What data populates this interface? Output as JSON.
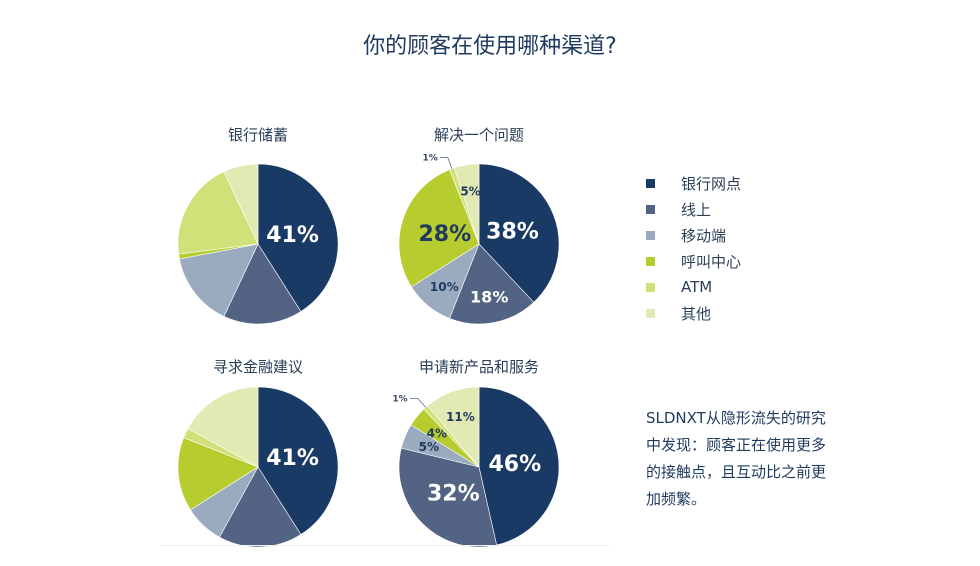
{
  "title": "你的顾客在使用哪种渠道?",
  "legend": [
    {
      "label": "银行网点",
      "color": "#1a3a66"
    },
    {
      "label": "线上",
      "color": "#536384"
    },
    {
      "label": "移动端",
      "color": "#9aabc0"
    },
    {
      "label": "呼叫中心",
      "color": "#b7cc2e"
    },
    {
      "label": "ATM",
      "color": "#d2e07a"
    },
    {
      "label": "其他",
      "color": "#e3e9b2"
    }
  ],
  "note": "SLDNXT从隐形流失的研究中发现：顾客正在使用更多的接触点，且互动比之前更加频繁。",
  "chart_data": [
    {
      "type": "pie",
      "title": "银行储蓄",
      "slices": [
        {
          "label": "银行网点",
          "value": 41,
          "display": "41%"
        },
        {
          "label": "线上",
          "value": 16,
          "display": ""
        },
        {
          "label": "移动端",
          "value": 15,
          "display": ""
        },
        {
          "label": "呼叫中心",
          "value": 1,
          "display": ""
        },
        {
          "label": "ATM",
          "value": 20,
          "display": ""
        },
        {
          "label": "其他",
          "value": 7,
          "display": ""
        }
      ]
    },
    {
      "type": "pie",
      "title": "解决一个问题",
      "slices": [
        {
          "label": "银行网点",
          "value": 38,
          "display": "38%"
        },
        {
          "label": "线上",
          "value": 18,
          "display": "18%"
        },
        {
          "label": "移动端",
          "value": 10,
          "display": "10%"
        },
        {
          "label": "呼叫中心",
          "value": 28,
          "display": "28%"
        },
        {
          "label": "ATM",
          "value": 1,
          "display": "1%"
        },
        {
          "label": "其他",
          "value": 5,
          "display": "5%"
        }
      ]
    },
    {
      "type": "pie",
      "title": "寻求金融建议",
      "slices": [
        {
          "label": "银行网点",
          "value": 41,
          "display": "41%"
        },
        {
          "label": "线上",
          "value": 17,
          "display": ""
        },
        {
          "label": "移动端",
          "value": 8,
          "display": ""
        },
        {
          "label": "呼叫中心",
          "value": 15,
          "display": ""
        },
        {
          "label": "ATM",
          "value": 2,
          "display": ""
        },
        {
          "label": "其他",
          "value": 17,
          "display": ""
        }
      ]
    },
    {
      "type": "pie",
      "title": "申请新产品和服务",
      "slices": [
        {
          "label": "银行网点",
          "value": 46,
          "display": "46%"
        },
        {
          "label": "线上",
          "value": 32,
          "display": "32%"
        },
        {
          "label": "移动端",
          "value": 5,
          "display": "5%"
        },
        {
          "label": "呼叫中心",
          "value": 4,
          "display": "4%"
        },
        {
          "label": "ATM",
          "value": 1,
          "display": "1%"
        },
        {
          "label": "其他",
          "value": 11,
          "display": "11%"
        }
      ]
    }
  ]
}
